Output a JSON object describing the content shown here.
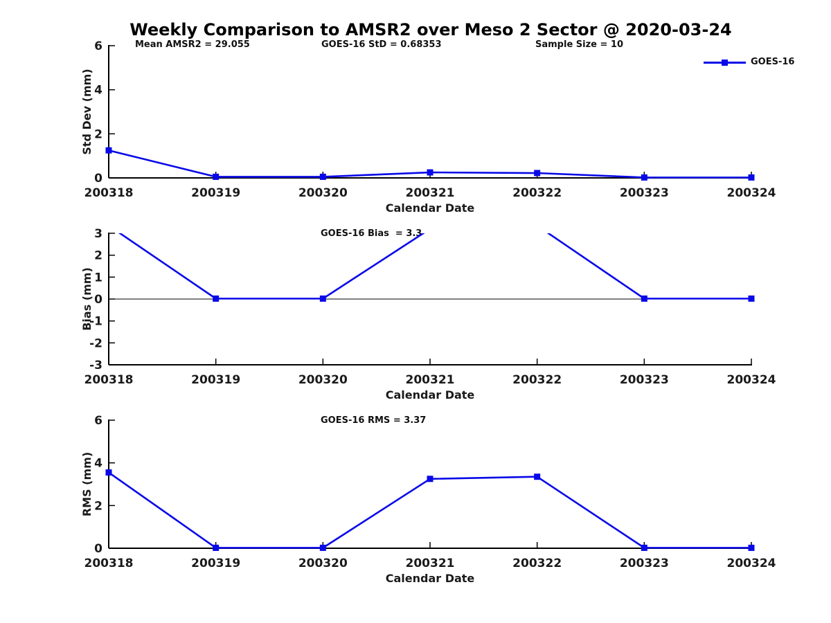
{
  "title": "Weekly Comparison to AMSR2 over Meso 2 Sector @ 2020-03-24",
  "stats": {
    "mean_amsr2": "Mean AMSR2 = 29.055",
    "goes16_std": "GOES-16 StD = 0.68353",
    "sample_size": "Sample Size = 10"
  },
  "legend": {
    "label": "GOES-16",
    "marker": "square"
  },
  "colors": {
    "line": "#0808e8",
    "axis": "#000000",
    "text": "#111111"
  },
  "chart_data": [
    {
      "type": "line",
      "subplot": "std-dev",
      "annotation": "",
      "categories": [
        "200318",
        "200319",
        "200320",
        "200321",
        "200322",
        "200323",
        "200324"
      ],
      "series": [
        {
          "name": "GOES-16",
          "values": [
            1.25,
            0.05,
            0.05,
            0.25,
            0.22,
            0.02,
            0.02
          ]
        }
      ],
      "xlabel": "Calendar Date",
      "ylabel": "Std Dev (mm)",
      "ylim": [
        0,
        6
      ],
      "yticks": [
        0,
        2,
        4,
        6
      ],
      "grid": false,
      "zero_line": false,
      "legend_position": "top-right-outside"
    },
    {
      "type": "line",
      "subplot": "bias",
      "annotation": "GOES-16 Bias  = 3.3",
      "categories": [
        "200318",
        "200319",
        "200320",
        "200321",
        "200322",
        "200323",
        "200324"
      ],
      "series": [
        {
          "name": "GOES-16",
          "values": [
            3.35,
            0.02,
            0.02,
            3.2,
            3.35,
            0.02,
            0.02
          ]
        }
      ],
      "xlabel": "Calendar Date",
      "ylabel": "Bias (mm)",
      "ylim": [
        -3,
        3
      ],
      "yticks": [
        -3,
        -2,
        -1,
        0,
        1,
        2,
        3
      ],
      "grid": false,
      "zero_line": true
    },
    {
      "type": "line",
      "subplot": "rms",
      "annotation": "GOES-16 RMS = 3.37",
      "categories": [
        "200318",
        "200319",
        "200320",
        "200321",
        "200322",
        "200323",
        "200324"
      ],
      "series": [
        {
          "name": "GOES-16",
          "values": [
            3.55,
            0.02,
            0.02,
            3.25,
            3.35,
            0.02,
            0.02
          ]
        }
      ],
      "xlabel": "Calendar Date",
      "ylabel": "RMS (mm)",
      "ylim": [
        0,
        6
      ],
      "yticks": [
        0,
        2,
        4,
        6
      ],
      "grid": false,
      "zero_line": false
    }
  ]
}
